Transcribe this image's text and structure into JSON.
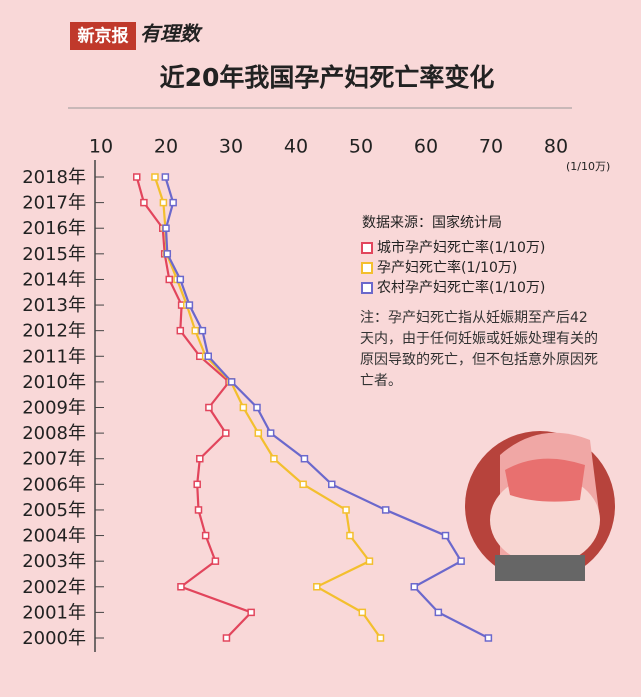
{
  "brand": "新京报",
  "logo": "有理数",
  "chart_data": {
    "type": "line",
    "title": "近20年我国孕产妇死亡率变化",
    "x_unit": "(1/10万)",
    "source": "数据来源：国家统计局",
    "note": "注：孕产妇死亡指从妊娠期至产后42天内，由于任何妊娠或妊娠处理有关的原因导致的死亡，但不包括意外原因死亡者。",
    "categories": [
      "2018年",
      "2017年",
      "2016年",
      "2015年",
      "2014年",
      "2013年",
      "2012年",
      "2011年",
      "2010年",
      "2009年",
      "2008年",
      "2007年",
      "2006年",
      "2005年",
      "2004年",
      "2003年",
      "2002年",
      "2001年",
      "2000年"
    ],
    "xlim": [
      10,
      80
    ],
    "xticks": [
      10,
      20,
      30,
      40,
      50,
      60,
      70,
      80
    ],
    "series": [
      {
        "name": "城市孕产妇死亡率(1/10万)",
        "color": "#e2455c",
        "values": [
          15.5,
          16.6,
          19.5,
          19.8,
          20.5,
          22.4,
          22.2,
          25.2,
          29.7,
          26.6,
          29.2,
          25.2,
          24.8,
          25.0,
          26.1,
          27.6,
          22.3,
          33.1,
          29.3
        ]
      },
      {
        "name": "孕产妇死亡率(1/10万)",
        "color": "#f3bf2e",
        "values": [
          18.3,
          19.6,
          19.9,
          20.1,
          21.7,
          23.2,
          24.5,
          26.1,
          30.0,
          31.9,
          34.2,
          36.6,
          41.1,
          47.7,
          48.3,
          51.3,
          43.2,
          50.2,
          53.0
        ]
      },
      {
        "name": "农村孕产妇死亡率(1/10万)",
        "color": "#6b68cc",
        "values": [
          19.9,
          21.1,
          20.0,
          20.2,
          22.2,
          23.6,
          25.6,
          26.5,
          30.1,
          34.0,
          36.1,
          41.3,
          45.5,
          53.8,
          63.0,
          65.4,
          58.2,
          61.9,
          69.6
        ]
      }
    ]
  }
}
